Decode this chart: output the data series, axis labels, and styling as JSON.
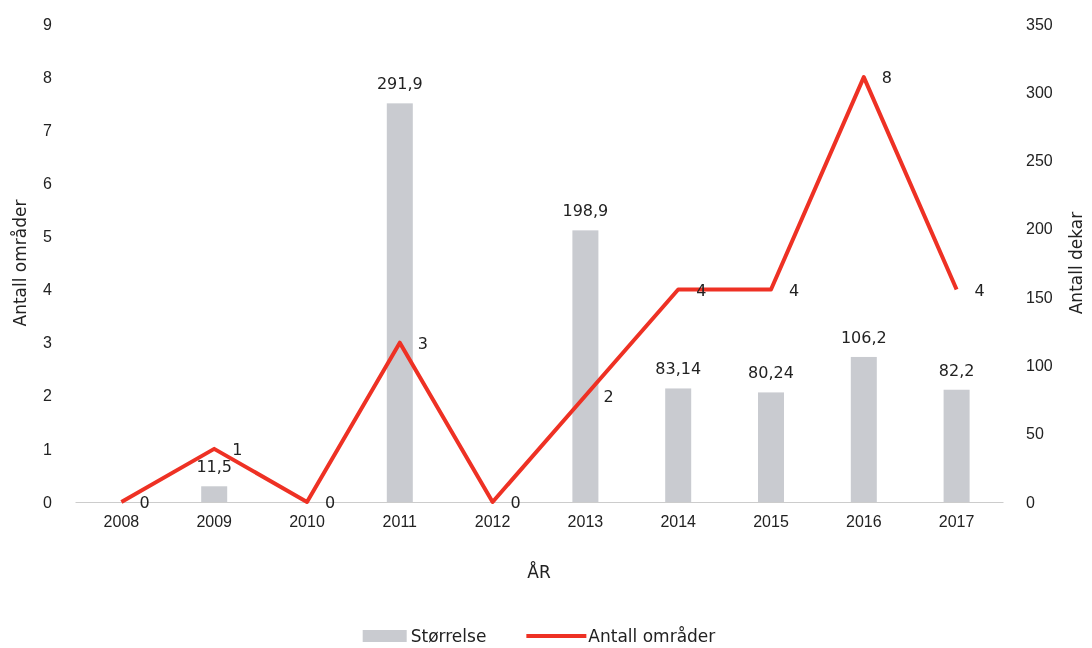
{
  "chart_data": {
    "type": "bar",
    "xlabel": "ÅR",
    "ylabel": "Antall områder",
    "y2label": "Antall dekar",
    "categories": [
      "2008",
      "2009",
      "2010",
      "2011",
      "2012",
      "2013",
      "2014",
      "2015",
      "2016",
      "2017"
    ],
    "series": [
      {
        "name": "Størrelse",
        "axis": "y2",
        "color": "#c9cbd0",
        "values": [
          null,
          11.5,
          null,
          291.9,
          null,
          198.9,
          83.14,
          80.24,
          106.2,
          82.2
        ],
        "value_labels": [
          null,
          "11,5",
          null,
          "291,9",
          null,
          "198,9",
          "83,14",
          "80,24",
          "106,2",
          "82,2"
        ]
      },
      {
        "name": "Antall områder",
        "type": "line",
        "axis": "y",
        "color": "#ee3124",
        "values": [
          0,
          1,
          0,
          3,
          0,
          2,
          4,
          4,
          8,
          4
        ],
        "value_labels": [
          "0",
          "1",
          "0",
          "3",
          "0",
          "2",
          "4",
          "4",
          "8",
          "4"
        ]
      }
    ],
    "ylim": [
      0,
      9
    ],
    "yticks": [
      0,
      1,
      2,
      3,
      4,
      5,
      6,
      7,
      8,
      9
    ],
    "y2lim": [
      0,
      350
    ],
    "y2ticks": [
      0,
      50,
      100,
      150,
      200,
      250,
      300,
      350
    ],
    "grid": false,
    "legend": "bottom"
  }
}
